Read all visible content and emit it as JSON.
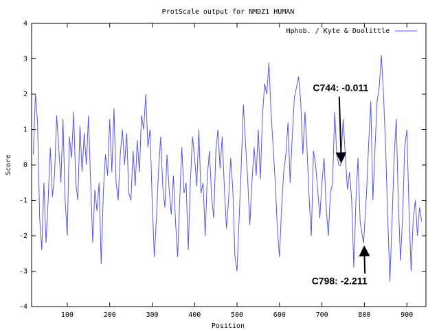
{
  "chart_data": {
    "type": "line",
    "title": "ProtScale output for NMDZ1 HUMAN",
    "x_label": "Position",
    "y_label": "Score",
    "xlim": [
      16,
      945
    ],
    "ylim": [
      -4,
      4
    ],
    "xticks": [
      100,
      200,
      300,
      400,
      500,
      600,
      700,
      800,
      900
    ],
    "yticks": [
      -4,
      -3,
      -2,
      -1,
      0,
      1,
      2,
      3,
      4
    ],
    "legend_position": "upper right",
    "series": [
      {
        "name": "Hphob. / Kyte & Doolittle",
        "color": "#5555ee",
        "x": [
          20,
          25,
          30,
          35,
          40,
          45,
          50,
          55,
          60,
          65,
          70,
          75,
          80,
          85,
          90,
          95,
          100,
          105,
          110,
          115,
          120,
          125,
          130,
          135,
          140,
          145,
          150,
          155,
          160,
          165,
          170,
          175,
          180,
          185,
          190,
          195,
          200,
          205,
          210,
          215,
          220,
          225,
          230,
          235,
          240,
          245,
          250,
          255,
          260,
          265,
          270,
          275,
          280,
          285,
          290,
          295,
          300,
          305,
          310,
          315,
          320,
          325,
          330,
          335,
          340,
          345,
          350,
          355,
          360,
          365,
          370,
          375,
          380,
          385,
          390,
          395,
          400,
          405,
          410,
          415,
          420,
          425,
          430,
          435,
          440,
          445,
          450,
          455,
          460,
          465,
          470,
          475,
          480,
          485,
          490,
          495,
          500,
          505,
          510,
          515,
          520,
          525,
          530,
          535,
          540,
          545,
          550,
          555,
          560,
          565,
          570,
          575,
          580,
          585,
          590,
          595,
          600,
          605,
          610,
          615,
          620,
          625,
          630,
          635,
          640,
          645,
          650,
          655,
          660,
          665,
          670,
          675,
          680,
          685,
          690,
          695,
          700,
          705,
          710,
          715,
          720,
          725,
          730,
          735,
          740,
          744,
          750,
          755,
          760,
          765,
          770,
          775,
          780,
          785,
          790,
          795,
          798,
          805,
          810,
          815,
          820,
          825,
          830,
          835,
          840,
          845,
          850,
          855,
          860,
          865,
          870,
          875,
          880,
          885,
          890,
          895,
          900,
          905,
          910,
          915,
          920,
          925,
          930,
          935
        ],
        "values": [
          0.3,
          2.0,
          1.2,
          -1.5,
          -2.4,
          -0.5,
          -2.2,
          -1.0,
          0.5,
          -0.9,
          -0.3,
          1.4,
          0.5,
          -0.5,
          1.3,
          -1.0,
          -2.0,
          0.8,
          0.2,
          1.5,
          -0.5,
          -1.0,
          1.1,
          -0.2,
          0.9,
          0.0,
          1.4,
          -0.5,
          -2.2,
          -0.7,
          -1.3,
          -0.5,
          -2.8,
          -0.8,
          0.3,
          -0.3,
          1.3,
          -0.2,
          1.6,
          -0.5,
          -1.0,
          0.3,
          1.0,
          0.0,
          0.9,
          -0.8,
          -1.0,
          0.4,
          -0.6,
          0.7,
          -0.2,
          1.4,
          1.0,
          2.0,
          0.5,
          1.0,
          -1.0,
          -2.6,
          -1.5,
          -0.2,
          0.8,
          -0.6,
          -1.2,
          0.3,
          -0.7,
          -1.4,
          -0.3,
          -1.6,
          -2.6,
          -1.0,
          0.5,
          -0.8,
          -0.5,
          -2.4,
          -0.5,
          0.8,
          0.2,
          -0.6,
          1.0,
          -0.8,
          -0.5,
          -2.0,
          -0.3,
          0.4,
          -0.9,
          -1.5,
          0.4,
          1.0,
          -0.1,
          0.8,
          -0.6,
          -1.8,
          -1.0,
          0.2,
          -0.7,
          -2.6,
          -3.0,
          -1.5,
          0.0,
          1.7,
          0.6,
          -0.4,
          -1.7,
          -0.5,
          0.5,
          -0.3,
          1.0,
          -0.4,
          1.4,
          2.3,
          2.0,
          2.9,
          1.5,
          0.5,
          -0.5,
          -1.8,
          -2.6,
          -1.2,
          -0.2,
          0.3,
          1.2,
          -0.5,
          0.8,
          1.9,
          2.2,
          2.5,
          1.8,
          0.3,
          1.5,
          0.4,
          -1.0,
          -2.0,
          0.4,
          0.0,
          -0.7,
          -1.5,
          -0.5,
          0.2,
          -1.2,
          -2.0,
          -0.8,
          -0.5,
          1.5,
          0.3,
          0.0,
          -0.011,
          1.3,
          0.3,
          -0.7,
          -0.2,
          -1.0,
          -2.9,
          -1.0,
          0.2,
          -1.6,
          -2.0,
          -2.211,
          -0.8,
          0.6,
          1.8,
          -1.0,
          0.5,
          1.8,
          2.2,
          3.1,
          2.0,
          0.5,
          -1.5,
          -3.3,
          -1.6,
          0.2,
          1.3,
          -1.0,
          -2.7,
          -1.5,
          0.5,
          1.0,
          -1.2,
          -3.0,
          -1.5,
          -1.0,
          -2.0,
          -1.2,
          -1.6
        ]
      }
    ],
    "annotations": [
      {
        "text": "C744: -0.011",
        "x": 744,
        "y": -0.011
      },
      {
        "text": "C798: -2.211",
        "x": 798,
        "y": -2.211
      }
    ]
  }
}
